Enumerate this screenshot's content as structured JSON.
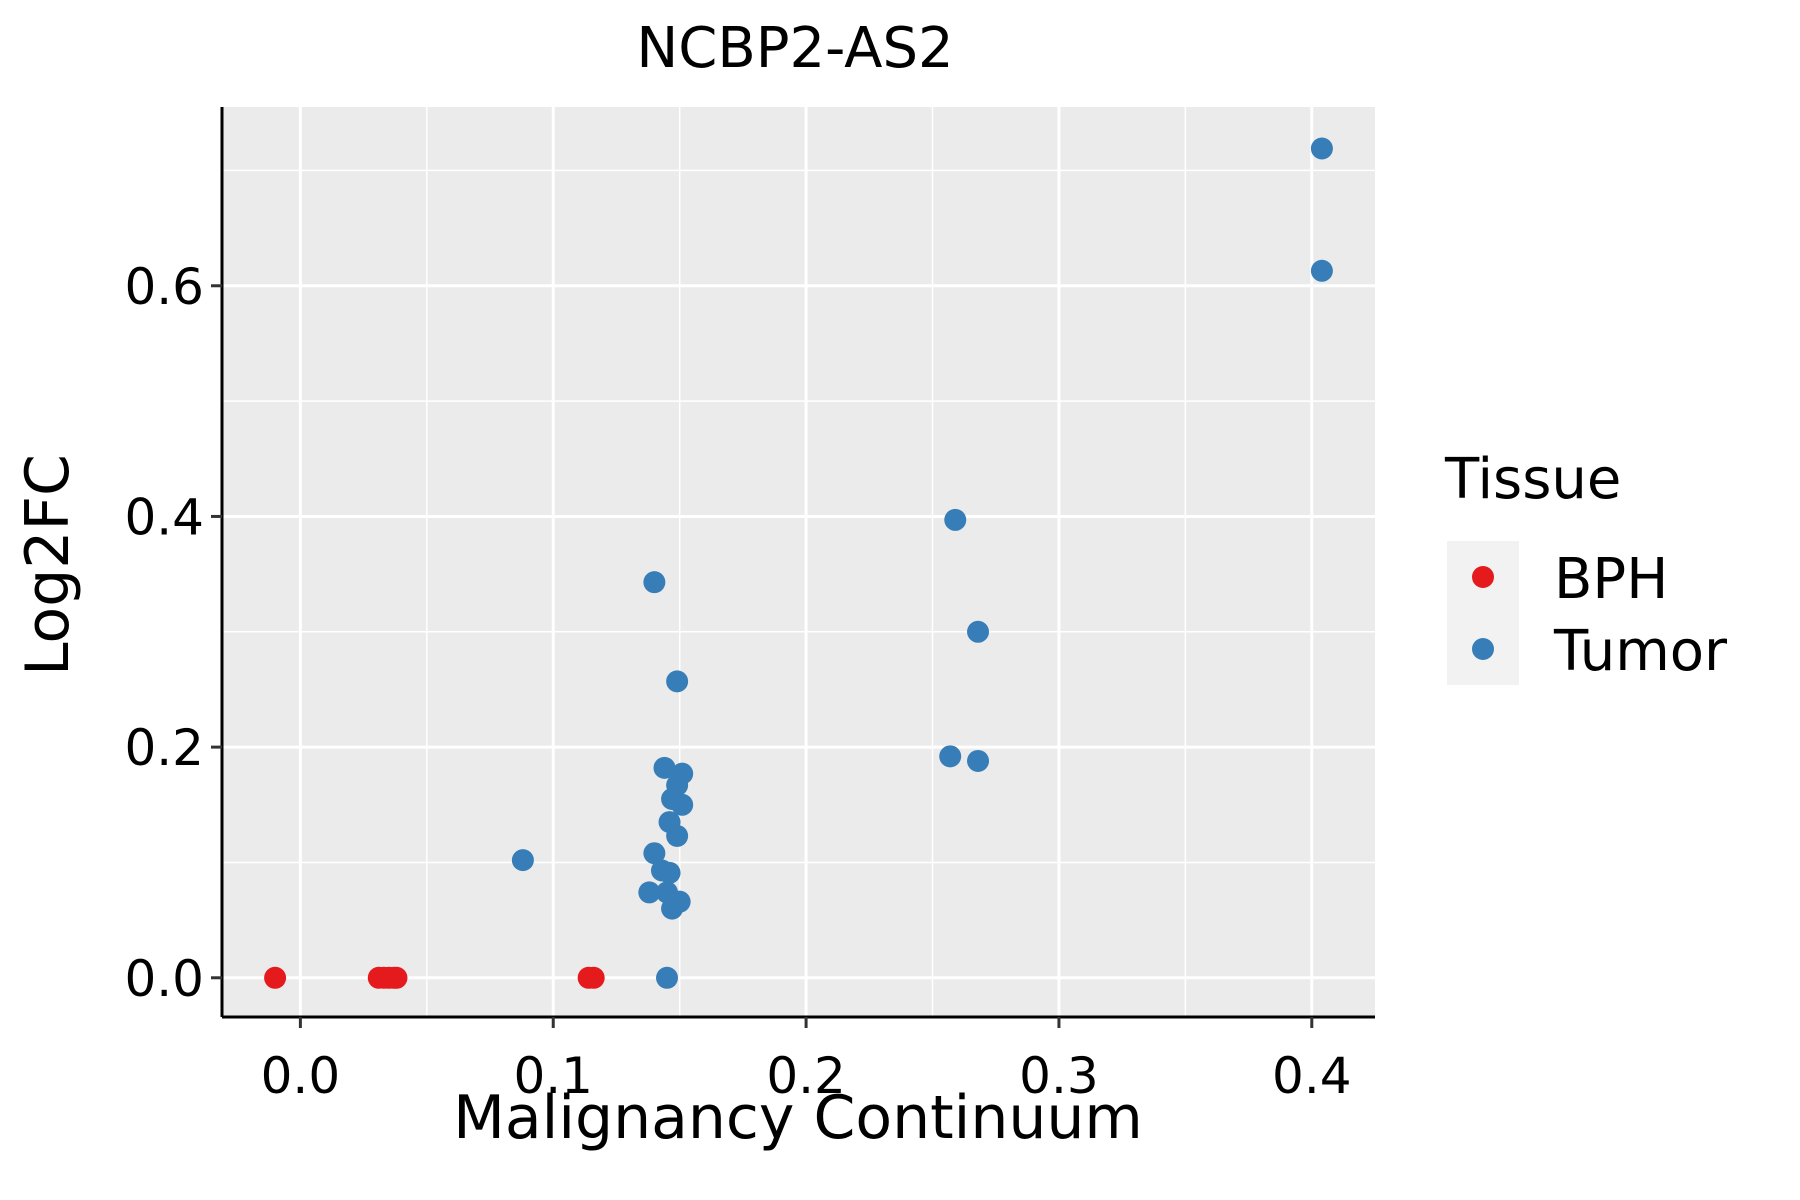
{
  "chart_data": {
    "type": "scatter",
    "title": "NCBP2-AS2",
    "xlabel": "Malignancy Continuum",
    "ylabel": "Log2FC",
    "xlim": [
      -0.031,
      0.425
    ],
    "ylim": [
      -0.034,
      0.755
    ],
    "xticks": [
      0.0,
      0.1,
      0.2,
      0.3,
      0.4
    ],
    "xtick_labels": [
      "0.0",
      "0.1",
      "0.2",
      "0.3",
      "0.4"
    ],
    "yticks": [
      0.0,
      0.2,
      0.4,
      0.6
    ],
    "ytick_labels": [
      "0.0",
      "0.2",
      "0.4",
      "0.6"
    ],
    "x_minor": [
      0.05,
      0.15,
      0.25,
      0.35
    ],
    "y_minor": [
      0.1,
      0.3,
      0.5,
      0.7
    ],
    "grid": true,
    "legend": {
      "title": "Tissue",
      "position": "right",
      "entries": [
        {
          "label": "BPH",
          "color": "#E41A1C"
        },
        {
          "label": "Tumor",
          "color": "#377EB8"
        }
      ]
    },
    "series": [
      {
        "name": "BPH",
        "color": "#E41A1C",
        "points": [
          {
            "x": -0.01,
            "y": 0.0
          },
          {
            "x": 0.031,
            "y": 0.0
          },
          {
            "x": 0.033,
            "y": 0.0
          },
          {
            "x": 0.035,
            "y": 0.0
          },
          {
            "x": 0.037,
            "y": 0.0
          },
          {
            "x": 0.038,
            "y": 0.0
          },
          {
            "x": 0.114,
            "y": 0.0
          },
          {
            "x": 0.116,
            "y": 0.0
          }
        ]
      },
      {
        "name": "Tumor",
        "color": "#377EB8",
        "points": [
          {
            "x": 0.404,
            "y": 0.719
          },
          {
            "x": 0.404,
            "y": 0.613
          },
          {
            "x": 0.259,
            "y": 0.397
          },
          {
            "x": 0.14,
            "y": 0.343
          },
          {
            "x": 0.268,
            "y": 0.3
          },
          {
            "x": 0.149,
            "y": 0.257
          },
          {
            "x": 0.257,
            "y": 0.192
          },
          {
            "x": 0.268,
            "y": 0.188
          },
          {
            "x": 0.144,
            "y": 0.182
          },
          {
            "x": 0.151,
            "y": 0.177
          },
          {
            "x": 0.149,
            "y": 0.167
          },
          {
            "x": 0.147,
            "y": 0.155
          },
          {
            "x": 0.151,
            "y": 0.15
          },
          {
            "x": 0.146,
            "y": 0.135
          },
          {
            "x": 0.149,
            "y": 0.123
          },
          {
            "x": 0.14,
            "y": 0.108
          },
          {
            "x": 0.088,
            "y": 0.102
          },
          {
            "x": 0.143,
            "y": 0.093
          },
          {
            "x": 0.146,
            "y": 0.091
          },
          {
            "x": 0.138,
            "y": 0.074
          },
          {
            "x": 0.145,
            "y": 0.074
          },
          {
            "x": 0.15,
            "y": 0.066
          },
          {
            "x": 0.147,
            "y": 0.06
          },
          {
            "x": 0.145,
            "y": 0.0
          }
        ]
      }
    ]
  }
}
